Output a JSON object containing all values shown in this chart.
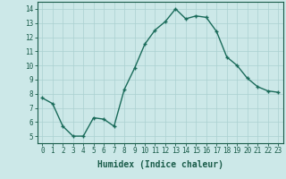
{
  "x": [
    0,
    1,
    2,
    3,
    4,
    5,
    6,
    7,
    8,
    9,
    10,
    11,
    12,
    13,
    14,
    15,
    16,
    17,
    18,
    19,
    20,
    21,
    22,
    23
  ],
  "y": [
    7.7,
    7.3,
    5.7,
    5.0,
    5.0,
    6.3,
    6.2,
    5.7,
    8.3,
    9.8,
    11.5,
    12.5,
    13.1,
    14.0,
    13.3,
    13.5,
    13.4,
    12.4,
    10.6,
    10.0,
    9.1,
    8.5,
    8.2,
    8.1
  ],
  "line_color": "#1a6b5a",
  "marker": "+",
  "marker_size": 3.5,
  "marker_color": "#1a6b5a",
  "bg_color": "#cce8e8",
  "grid_color": "#aad0d0",
  "axis_color": "#1a5c4a",
  "xlabel": "Humidex (Indice chaleur)",
  "xlabel_fontsize": 7,
  "ylim": [
    4.5,
    14.5
  ],
  "yticks": [
    5,
    6,
    7,
    8,
    9,
    10,
    11,
    12,
    13,
    14
  ],
  "xtick_labels": [
    "0",
    "1",
    "2",
    "3",
    "4",
    "5",
    "6",
    "7",
    "8",
    "9",
    "10",
    "11",
    "12",
    "13",
    "14",
    "15",
    "16",
    "17",
    "18",
    "19",
    "20",
    "21",
    "22",
    "23"
  ],
  "tick_fontsize": 5.5,
  "linewidth": 1.0
}
